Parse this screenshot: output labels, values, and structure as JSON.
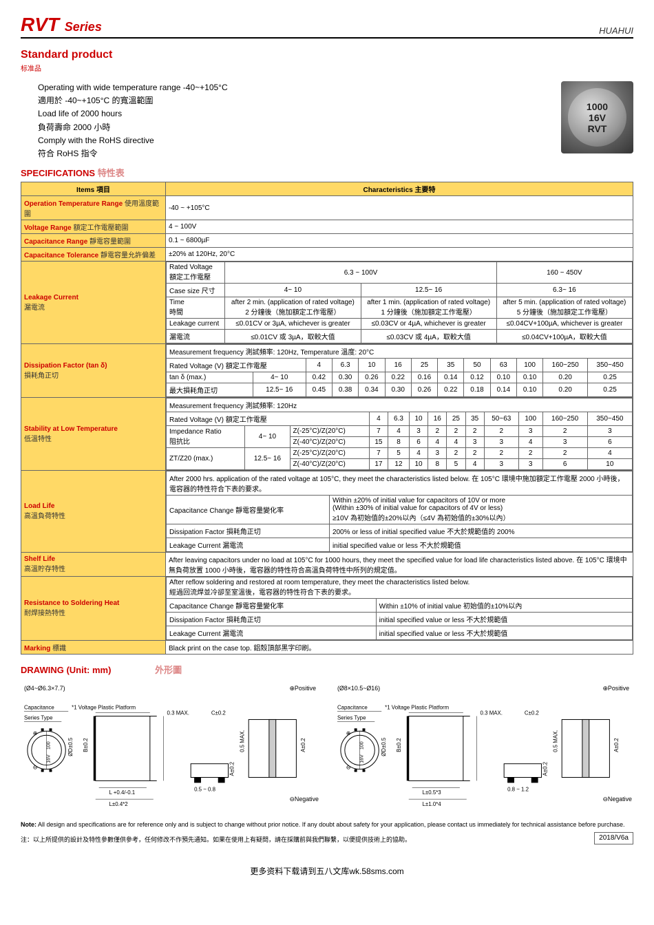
{
  "header": {
    "logo": "RVT",
    "series": "Series",
    "brand": "HUAHUI"
  },
  "standard": {
    "title": "Standard product",
    "sub": "标准品"
  },
  "intro": {
    "l1": "Operating with wide temperature range -40~+105°C",
    "l2": "適用於 -40~+105°C 的寬溫範圍",
    "l3": "Load life of 2000 hours",
    "l4": "負荷壽命 2000 小時",
    "l5": "Comply with the RoHS directive",
    "l6": "符合 RoHS 指令"
  },
  "cap_img": {
    "l1": "1000",
    "l2": "16V",
    "l3": "RVT"
  },
  "spec": {
    "head_en": "SPECIFICATIONS",
    "head_zh": "特性表",
    "th_items": "Items 項目",
    "th_char": "Characteristics 主要特",
    "rows": {
      "temp": {
        "label_en": "Operation Temperature Range",
        "label_zh": "使用溫度範圍",
        "val": "-40 ~ +105°C"
      },
      "volt": {
        "label_en": "Voltage Range",
        "label_zh": "額定工作電壓範圍",
        "val": "4 ~ 100V"
      },
      "cap": {
        "label_en": "Capacitance Range",
        "label_zh": "靜電容量範圍",
        "val": "0.1 ~ 6800µF"
      },
      "tol": {
        "label_en": "Capacitance Tolerance",
        "label_zh": "靜電容量允許偏差",
        "val": "±20% at 120Hz, 20°C"
      },
      "leak": {
        "label_en": "Leakage Current",
        "label_zh": "漏電流",
        "rv": "Rated Voltage\n額定工作電壓",
        "rv1": "6.3 ~ 100V",
        "rv2": "160 ~ 450V",
        "cs": "Case size 尺寸",
        "cs1": "4~  10",
        "cs2": "12.5~  16",
        "cs3": "6.3~  16",
        "tm": "Time\n時間",
        "tm1": "after 2 min. (application of rated voltage)\n2 分鐘後（施加額定工作電壓）",
        "tm2": "after 1 min. (application of rated voltage)\n1 分鐘後（施加額定工作電壓）",
        "tm3": "after 5 min. (application of rated voltage)\n5 分鐘後（施加額定工作電壓）",
        "lc": "Leakage current",
        "lc1": "≤0.01CV or 3µA, whichever is greater",
        "lc2": "≤0.03CV or 4µA, whichever is greater",
        "lc3": "≤0.04CV+100µA, whichever is greater",
        "ld": "漏電流",
        "ld1": "≤0.01CV 或 3µA，取較大值",
        "ld2": "≤0.03CV 或 4µA，取較大值",
        "ld3": "≤0.04CV+100µA，取較大值"
      },
      "df": {
        "label_en": "Dissipation Factor (tan δ)",
        "label_zh": "損耗角正切",
        "meas": "Measurement frequency 測試頻率: 120Hz, Temperature 溫度: 20°C",
        "r0": "Rated Voltage (V) 額定工作電壓",
        "h": [
          "4",
          "6.3",
          "10",
          "16",
          "25",
          "35",
          "50",
          "63",
          "100",
          "160~250",
          "350~450"
        ],
        "r1": "tan δ (max.)",
        "r1p": "4~  10",
        "v1": [
          "0.42",
          "0.30",
          "0.26",
          "0.22",
          "0.16",
          "0.14",
          "0.12",
          "0.10",
          "0.10",
          "0.20",
          "0.25"
        ],
        "r2": "最大損耗角正切",
        "r2p": "12.5~  16",
        "v2": [
          "0.45",
          "0.38",
          "0.34",
          "0.30",
          "0.26",
          "0.22",
          "0.18",
          "0.14",
          "0.10",
          "0.20",
          "0.25"
        ]
      },
      "stab": {
        "label_en": "Stability at Low Temperature",
        "label_zh": "低溫特性",
        "meas": "Measurement frequency 測試頻率: 120Hz",
        "r0": "Rated Voltage (V) 額定工作電壓",
        "h": [
          "4",
          "6.3",
          "10",
          "16",
          "25",
          "35",
          "50~63",
          "100",
          "160~250",
          "350~450"
        ],
        "ir": "Impedance Ratio\n阻抗比",
        "ir1": "4~  10",
        "ir2": "12.5~  16",
        "zt": "ZT/Z20 (max.)",
        "z1": "Z(-25°C)/Z(20°C)",
        "z1v": [
          "7",
          "4",
          "3",
          "2",
          "2",
          "2",
          "2",
          "3",
          "2",
          "3"
        ],
        "z2": "Z(-40°C)/Z(20°C)",
        "z2v": [
          "15",
          "8",
          "6",
          "4",
          "4",
          "3",
          "3",
          "4",
          "3",
          "6"
        ],
        "z3": "Z(-25°C)/Z(20°C)",
        "z3v": [
          "7",
          "5",
          "4",
          "3",
          "2",
          "2",
          "2",
          "2",
          "2",
          "4"
        ],
        "z4": "Z(-40°C)/Z(20°C)",
        "z4v": [
          "17",
          "12",
          "10",
          "8",
          "5",
          "4",
          "3",
          "3",
          "6",
          "10"
        ]
      },
      "load": {
        "label_en": "Load Life",
        "label_zh": "高溫負荷特性",
        "desc": "After 2000 hrs. application of the rated voltage at 105°C, they meet the characteristics listed below.  在 105°C 環境中施加額定工作電壓 2000 小時後，電容器的特性符合下表的要求。",
        "c1a": "Capacitance Change 靜電容量變化率",
        "c1b": "Within ±20% of initial value for capacitors of 10V or more\n(Within ±30% of initial value for capacitors of 4V or less)\n≥10V 為初始值的±20%以內（≤4V 為初始值的±30%以內）",
        "c2a": "Dissipation Factor 損耗角正切",
        "c2b": "200% or less of initial specified value 不大於規範值的 200%",
        "c3a": "Leakage Current 漏電流",
        "c3b": "initial specified value or less 不大於規範值"
      },
      "shelf": {
        "label_en": "Shelf Life",
        "label_zh": "高溫貯存特性",
        "val": "After leaving capacitors under no load at 105°C for 1000 hours, they meet the specified value for load life characteristics listed above.  在 105°C 環境中無負荷放置 1000 小時後，電容器的特性符合高溫負荷特性中所列的規定值。"
      },
      "sold": {
        "label_en": "Resistance to Soldering Heat",
        "label_zh": "耐焊接熱特性",
        "desc": "After reflow soldering and restored at room temperature, they meet the characteristics listed below.\n經過回流焊並冷卻至室溫後，電容器的特性符合下表的要求。",
        "c1a": "Capacitance Change 靜電容量變化率",
        "c1b": "Within ±10% of initial value 初始值的±10%以內",
        "c2a": "Dissipation Factor 損耗角正切",
        "c2b": "initial specified value or less 不大於規範值",
        "c3a": "Leakage Current 漏電流",
        "c3b": "initial specified value or less 不大於規範值"
      },
      "mark": {
        "label_en": "Marking",
        "label_zh": "標識",
        "val": "Black print on the case top.  鋁殼頂部黑字印刷。"
      }
    }
  },
  "drawing": {
    "head_en": "DRAWING (Unit: mm)",
    "head_zh": "外形圖",
    "d1": {
      "range": "(Ø4~Ø6.3×7.7)",
      "pos": "⊕Positive",
      "neg": "⊖Negative",
      "lbls": [
        "Capacitance",
        "*1 Voltage Plastic Platform",
        "Series Type",
        "0.3 MAX.",
        "C±0.2",
        "0.5 MAX.",
        "A±0.2",
        "B±0.2",
        "ØD±0.5",
        "L +0.4/-0.1",
        "L±0.4*2",
        "0.5 ~ 0.8",
        "A±0.2"
      ]
    },
    "d2": {
      "range": "(Ø8×10.5~Ø16)",
      "pos": "⊕Positive",
      "neg": "⊖Negative",
      "lbls": [
        "Capacitance",
        "*1 Voltage  Plastic Platform",
        "Series Type",
        "0.3 MAX.",
        "C±0.2",
        "0.5 MAX.",
        "A±0.2",
        "B±0.2",
        "ØD±0.5",
        "L±0.5*3",
        "L±1.0*4",
        "0.8 ~ 1.2",
        "A±0.2"
      ]
    }
  },
  "note": {
    "b": "Note:",
    "en": " All design and specifications are for reference only and is subject to change without prior notice. If any doubt about safety for your application, please contact us immediately for technical assistance before purchase.",
    "zh": "注：以上所提供的設計及特性參數僅供參考，任何修改不作預先通知。如果在使用上有疑問，請在採購前與我們聯繫，以便提供技術上的協助。",
    "ver": "2018/V6a"
  },
  "bottom": "更多资料下载请到五八文库wk.58sms.com",
  "colors": {
    "red": "#c00000",
    "yellow": "#ffd966",
    "border": "#666666"
  }
}
